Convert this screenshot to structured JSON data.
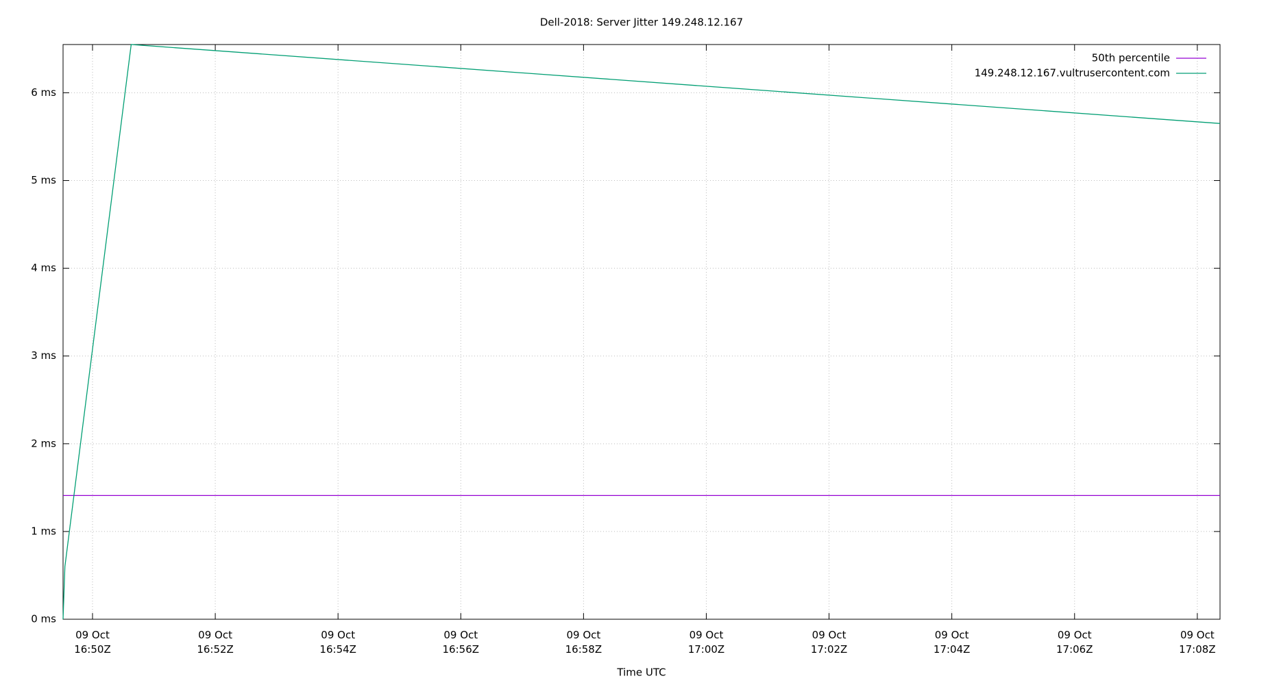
{
  "chart_data": {
    "type": "line",
    "title": "Dell-2018: Server Jitter 149.248.12.167",
    "xlabel": "Time UTC",
    "xlim": [
      1009.52,
      1028.37
    ],
    "ylim": [
      0,
      6.55
    ],
    "xticks": [
      {
        "value": 1010,
        "label": "09 Oct 16:50Z"
      },
      {
        "value": 1012,
        "label": "09 Oct 16:52Z"
      },
      {
        "value": 1014,
        "label": "09 Oct 16:54Z"
      },
      {
        "value": 1016,
        "label": "09 Oct 16:56Z"
      },
      {
        "value": 1018,
        "label": "09 Oct 16:58Z"
      },
      {
        "value": 1020,
        "label": "09 Oct 17:00Z"
      },
      {
        "value": 1022,
        "label": "09 Oct 17:02Z"
      },
      {
        "value": 1024,
        "label": "09 Oct 17:04Z"
      },
      {
        "value": 1026,
        "label": "09 Oct 17:06Z"
      },
      {
        "value": 1028,
        "label": "09 Oct 17:08Z"
      }
    ],
    "yticks": [
      {
        "value": 0,
        "label": "0 ms"
      },
      {
        "value": 1,
        "label": "1 ms"
      },
      {
        "value": 2,
        "label": "2 ms"
      },
      {
        "value": 3,
        "label": "3 ms"
      },
      {
        "value": 4,
        "label": "4 ms"
      },
      {
        "value": 5,
        "label": "5 ms"
      },
      {
        "value": 6,
        "label": "6 ms"
      }
    ],
    "grid": true,
    "legend": "top-right",
    "series": [
      {
        "name": "50th percentile",
        "color": "#9400d3",
        "x": [
          1009.52,
          1028.37
        ],
        "values": [
          1.41,
          1.41
        ]
      },
      {
        "name": "149.248.12.167.vultrusercontent.com",
        "color": "#009e73",
        "x": [
          1009.52,
          1009.55,
          1010.63,
          1028.37
        ],
        "values": [
          0,
          0.6,
          6.55,
          5.65
        ]
      }
    ]
  }
}
